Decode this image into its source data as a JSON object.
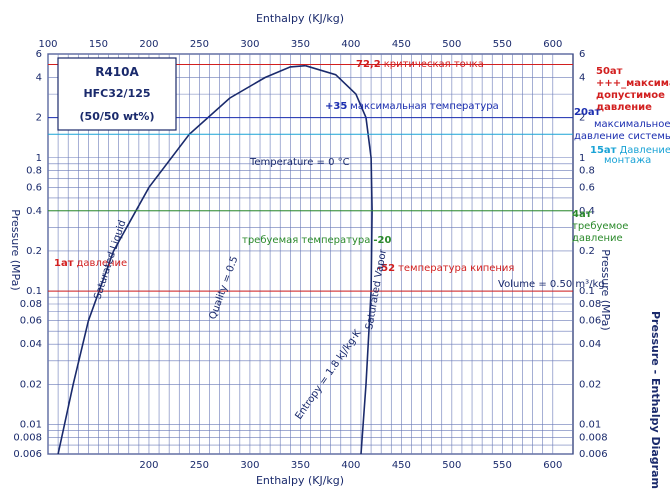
{
  "chart_data": {
    "type": "line",
    "title_box": [
      "R410A",
      "HFC32/125",
      "(50/50 wt%)"
    ],
    "xlabel_top": "Enthalpy (KJ/kg)",
    "xlabel_bottom": "Enthalpy (KJ/kg)",
    "ylabel_left": "Pressure (MPa)",
    "ylabel_right": "Pressure (MPa)",
    "side_title": "Pressure - Enthalpy Diagram",
    "x_top_ticks": [
      "100",
      "150",
      "200",
      "250",
      "300",
      "350",
      "400",
      "450",
      "500",
      "550",
      "600"
    ],
    "x_bottom_ticks": [
      "200",
      "250",
      "300",
      "350",
      "400",
      "450",
      "500",
      "550",
      "600"
    ],
    "y_ticks": [
      "6",
      "4",
      "2",
      "1",
      "0.8",
      "0.6",
      "0.4",
      "0.2",
      "0.1",
      "0.08",
      "0.06",
      "0.04",
      "0.02",
      "0.01",
      "0.008",
      "0.006"
    ],
    "xlim": [
      100,
      620
    ],
    "ylim": [
      0.006,
      6
    ],
    "y_scale": "log",
    "saturation_dome": {
      "liquid_line": [
        [
          110,
          0.006
        ],
        [
          125,
          0.02
        ],
        [
          140,
          0.06
        ],
        [
          165,
          0.2
        ],
        [
          200,
          0.6
        ],
        [
          240,
          1.5
        ],
        [
          280,
          2.8
        ],
        [
          315,
          4.0
        ],
        [
          340,
          4.8
        ],
        [
          355,
          4.9
        ]
      ],
      "vapor_line": [
        [
          355,
          4.9
        ],
        [
          385,
          4.2
        ],
        [
          405,
          3.0
        ],
        [
          415,
          2.0
        ],
        [
          420,
          1.0
        ],
        [
          421,
          0.4
        ],
        [
          420,
          0.1
        ],
        [
          415,
          0.02
        ],
        [
          410,
          0.006
        ]
      ]
    },
    "reference_lines": [
      {
        "label": "50ат",
        "pressure": 5.0
      },
      {
        "label": "20ат",
        "pressure": 2.0
      },
      {
        "label": "15ат",
        "pressure": 1.5
      },
      {
        "label": "4ат",
        "pressure": 0.4
      },
      {
        "label": "1ат",
        "pressure": 0.1
      }
    ],
    "dome_labels": [
      "Temperature = 0 °C",
      "Quality = 0.5",
      "Entropy = 1.8 kJ/kg·K",
      "Volume = 0.50 m³/kg",
      "Saturated Liquid",
      "Saturated Vapor"
    ]
  },
  "annotations": {
    "critical_value": "72,2",
    "critical_text": "критическая точка",
    "max_temp_value": "+35",
    "max_temp_text": "максимальная температура",
    "req_temp_text": "требуемая температура",
    "req_temp_value": "-20",
    "boil_value": "-52",
    "boil_text": "температура кипения",
    "p50_value": "50ат",
    "p50_text_1": "+++_максимал",
    "p50_text_2": "допустимое",
    "p50_text_3": "давление",
    "p20_value": "20ат",
    "p20_text_1": "максимальное",
    "p20_text_2": "давление системы",
    "p15_value": "15ат",
    "p15_text_1": "Давление",
    "p15_text_2": "монтажа",
    "p4_value": "4ат",
    "p4_text_1": "требуемое",
    "p4_text_2": "давление",
    "p1_value": "1ат",
    "p1_text": "давление"
  },
  "colors": {
    "grid": "#6a7ab8",
    "dome": "#1a2a6c",
    "red": "#d21f1f",
    "blue": "#1c2fb0",
    "cyan": "#1aa3d6",
    "green": "#2b8a2b"
  }
}
